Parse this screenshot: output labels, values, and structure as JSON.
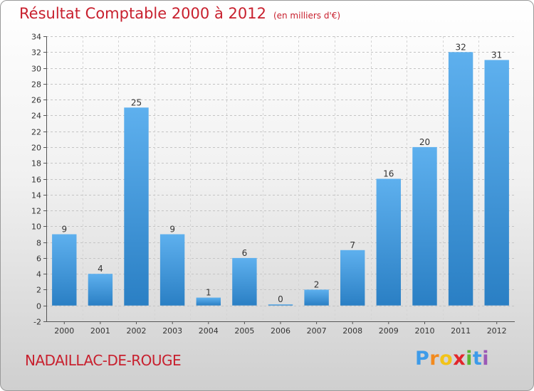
{
  "title": "Résultat Comptable 2000 à 2012",
  "unit_note": "(en milliers d'€)",
  "commune": "NADAILLAC-DE-ROUGE",
  "logo": {
    "letters": [
      "P",
      "r",
      "o",
      "x",
      "i",
      "t",
      "i"
    ],
    "colors": [
      "#3d9be9",
      "#f28a1e",
      "#f2c318",
      "#e2262b",
      "#5cb531",
      "#3d9be9",
      "#9b59b6"
    ]
  },
  "colors": {
    "title": "#c8202e",
    "bar_light": "#5eb0ee",
    "bar_dark": "#2a7fc4"
  },
  "chart_data": {
    "type": "bar",
    "title": "Résultat Comptable 2000 à 2012",
    "ylabel": "en milliers d'€",
    "categories": [
      "2000",
      "2001",
      "2002",
      "2003",
      "2004",
      "2005",
      "2006",
      "2007",
      "2008",
      "2009",
      "2010",
      "2011",
      "2012"
    ],
    "values": [
      9,
      4,
      25,
      9,
      1,
      6,
      0,
      2,
      7,
      16,
      20,
      32,
      31
    ],
    "ylim": [
      -2,
      34
    ],
    "yticks": [
      -2,
      0,
      2,
      4,
      6,
      8,
      10,
      12,
      14,
      16,
      18,
      20,
      22,
      24,
      26,
      28,
      30,
      32,
      34
    ],
    "grid": true
  }
}
